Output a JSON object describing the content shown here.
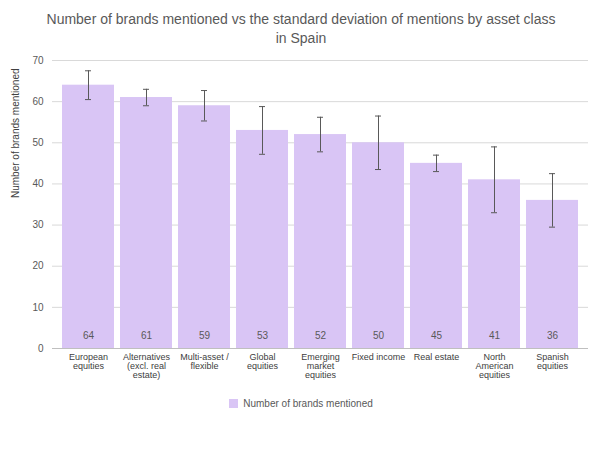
{
  "chart_data": {
    "type": "bar",
    "title": "Number of brands mentioned vs the standard deviation of mentions by asset class in Spain",
    "y_label": "Number of brands mentioned",
    "categories": [
      "European equities",
      "Alternatives (excl. real estate)",
      "Multi-asset / flexible",
      "Global equities",
      "Emerging market equities",
      "Fixed income",
      "Real estate",
      "North American equities",
      "Spanish equities"
    ],
    "series": [
      {
        "name": "Number of brands mentioned",
        "color": "#d9c5f5",
        "values": [
          64,
          61,
          59,
          53,
          52,
          50,
          45,
          41,
          36
        ],
        "errors": [
          3.5,
          2,
          3.7,
          5.8,
          4.2,
          6.5,
          2,
          8,
          6.5
        ]
      }
    ],
    "ylim": [
      0,
      70
    ],
    "yticks": [
      0,
      10,
      20,
      30,
      40,
      50,
      60,
      70
    ],
    "grid": true,
    "data_labels": true,
    "legend": "bottom"
  }
}
